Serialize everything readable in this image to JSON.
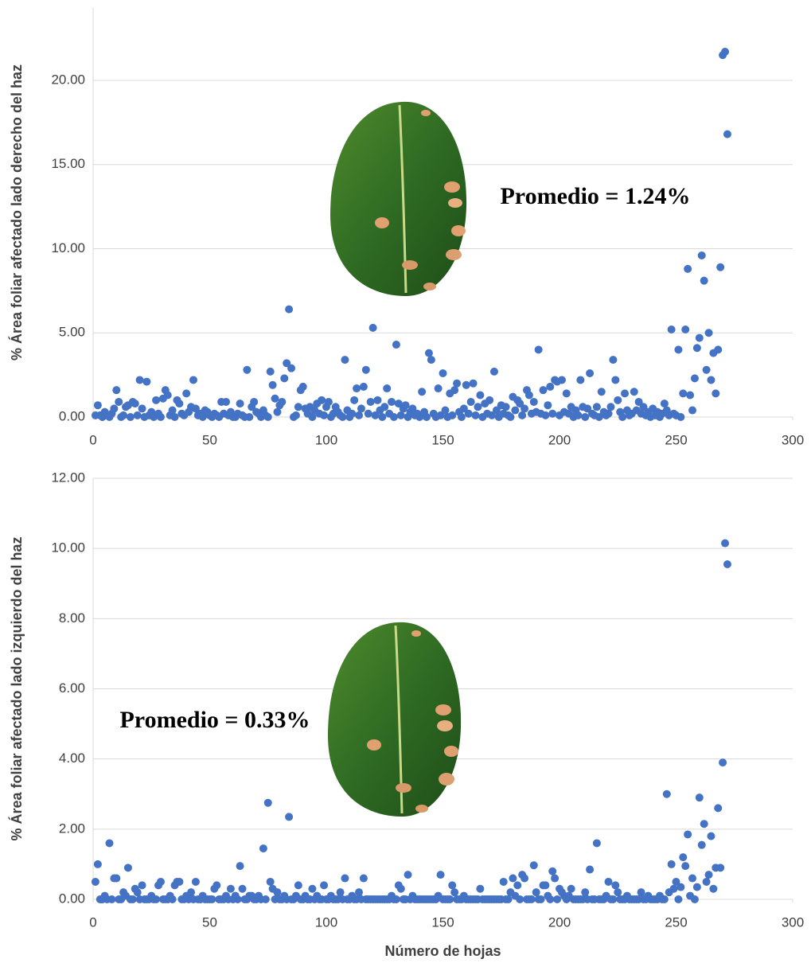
{
  "chart_data": [
    {
      "type": "scatter",
      "y_label": "% Área foliar afectado lado derecho del haz",
      "annotation": "Promedio = 1.24%",
      "color": "#4472c4",
      "grid": true,
      "xlim": [
        0,
        300
      ],
      "xticks": [
        0,
        50,
        100,
        150,
        200,
        250,
        300
      ],
      "ylim": [
        0,
        24.3
      ],
      "yticks": [
        {
          "value": 0,
          "label": "0.00"
        },
        {
          "value": 5,
          "label": "5.00"
        },
        {
          "value": 10,
          "label": "10.00"
        },
        {
          "value": 15,
          "label": "15.00"
        },
        {
          "value": 20,
          "label": "20.00"
        }
      ],
      "x": [
        1,
        2,
        3,
        4,
        5,
        6,
        7,
        8,
        9,
        10,
        11,
        12,
        13,
        14,
        15,
        16,
        17,
        18,
        19,
        20,
        21,
        22,
        23,
        24,
        25,
        26,
        27,
        28,
        29,
        30,
        31,
        32,
        33,
        34,
        35,
        36,
        37,
        38,
        39,
        40,
        41,
        42,
        43,
        44,
        45,
        46,
        47,
        48,
        49,
        50,
        51,
        52,
        53,
        54,
        55,
        56,
        57,
        58,
        59,
        60,
        61,
        62,
        63,
        64,
        65,
        66,
        67,
        68,
        69,
        70,
        71,
        72,
        73,
        74,
        75,
        76,
        77,
        78,
        79,
        80,
        81,
        82,
        83,
        84,
        85,
        86,
        87,
        88,
        89,
        90,
        91,
        92,
        93,
        94,
        95,
        96,
        97,
        98,
        99,
        100,
        101,
        102,
        103,
        104,
        105,
        106,
        107,
        108,
        109,
        110,
        111,
        112,
        113,
        114,
        115,
        116,
        117,
        118,
        119,
        120,
        121,
        122,
        123,
        124,
        125,
        126,
        127,
        128,
        129,
        130,
        131,
        132,
        133,
        134,
        135,
        136,
        137,
        138,
        139,
        140,
        141,
        142,
        143,
        144,
        145,
        146,
        147,
        148,
        149,
        150,
        151,
        152,
        153,
        154,
        155,
        156,
        157,
        158,
        159,
        160,
        161,
        162,
        163,
        164,
        165,
        166,
        167,
        168,
        169,
        170,
        171,
        172,
        173,
        174,
        175,
        176,
        177,
        178,
        179,
        180,
        181,
        182,
        183,
        184,
        185,
        186,
        187,
        188,
        189,
        190,
        191,
        192,
        193,
        194,
        195,
        196,
        197,
        198,
        199,
        200,
        201,
        202,
        203,
        204,
        205,
        206,
        207,
        208,
        209,
        210,
        211,
        212,
        213,
        214,
        215,
        216,
        217,
        218,
        219,
        220,
        221,
        222,
        223,
        224,
        225,
        226,
        227,
        228,
        229,
        230,
        231,
        232,
        233,
        234,
        235,
        236,
        237,
        238,
        239,
        240,
        241,
        242,
        243,
        244,
        245,
        246,
        247,
        248,
        249,
        250,
        251,
        252,
        253,
        254,
        255,
        256,
        257,
        258,
        259,
        260,
        261,
        262,
        263,
        264,
        265,
        266,
        267,
        268,
        269,
        270,
        271,
        272
      ],
      "values": [
        0.1,
        0.7,
        0.1,
        0,
        0.3,
        0.1,
        0,
        0.2,
        0.5,
        1.6,
        0.9,
        0,
        0.1,
        0.6,
        0.7,
        0,
        0.9,
        0.8,
        0.1,
        2.2,
        0.5,
        0,
        2.1,
        0.1,
        0.3,
        0,
        1.0,
        0.2,
        0,
        1.1,
        1.6,
        1.3,
        0.1,
        0.4,
        0,
        1.0,
        0.8,
        0.2,
        0.1,
        1.4,
        0.3,
        0.6,
        2.2,
        0.5,
        0.1,
        0.2,
        0,
        0.4,
        0.3,
        0.1,
        0,
        0.2,
        0.1,
        0,
        0.9,
        0.2,
        0.9,
        0.1,
        0.3,
        0,
        0,
        0.2,
        0.8,
        0.1,
        0,
        2.8,
        0,
        0.6,
        0.9,
        0.3,
        0.2,
        0,
        0.4,
        0.1,
        0,
        2.7,
        1.9,
        1.1,
        0.3,
        0.7,
        0.9,
        2.3,
        3.2,
        6.4,
        2.9,
        0,
        0.1,
        0.6,
        1.6,
        1.8,
        0.5,
        0.2,
        0.6,
        0,
        0.4,
        0.8,
        0.2,
        1.0,
        0.1,
        0.6,
        0.9,
        0,
        0.2,
        0.6,
        0.3,
        0.1,
        0,
        3.4,
        0.4,
        0,
        0.2,
        1.0,
        1.7,
        0.1,
        0.5,
        1.8,
        2.8,
        0.2,
        0.9,
        5.3,
        0.1,
        1.0,
        0.4,
        0,
        0.6,
        1.7,
        0.2,
        0.9,
        0,
        4.3,
        0.8,
        0.1,
        0.5,
        0.7,
        0,
        0.3,
        0.5,
        0.1,
        0.2,
        0,
        1.5,
        0.3,
        0,
        3.8,
        3.4,
        0.2,
        0,
        1.7,
        0.1,
        2.6,
        0.4,
        0,
        1.4,
        0.1,
        1.6,
        2.0,
        0.3,
        0,
        0.5,
        1.9,
        0.2,
        0.9,
        2.0,
        0.1,
        0.6,
        1.3,
        0,
        0.8,
        0.2,
        1.0,
        0.1,
        2.7,
        0.4,
        0,
        0.7,
        0.2,
        0.6,
        0.1,
        0,
        1.2,
        0.4,
        1.0,
        0.8,
        0.1,
        0.5,
        1.6,
        1.3,
        0.2,
        0.9,
        0.3,
        4.0,
        0.2,
        1.6,
        0.1,
        0.7,
        1.8,
        0.2,
        2.2,
        2.1,
        0.1,
        2.2,
        0.3,
        1.4,
        0.2,
        0.6,
        0,
        0.4,
        0.1,
        2.2,
        0.6,
        0,
        0.5,
        2.6,
        0.2,
        0.1,
        0.6,
        0,
        1.5,
        0.3,
        0.1,
        0.2,
        0.6,
        3.4,
        2.2,
        1.0,
        0.3,
        0,
        1.4,
        0.4,
        0.1,
        0.2,
        1.5,
        0.4,
        0.9,
        0.2,
        0.6,
        0.1,
        0.3,
        0,
        0.5,
        0.1,
        0.3,
        0,
        0.2,
        0.8,
        0.4,
        0.1,
        5.2,
        0.2,
        0.1,
        4.0,
        0,
        1.4,
        5.2,
        8.8,
        1.3,
        0.4,
        2.3,
        4.1,
        4.7,
        9.6,
        8.1,
        2.8,
        5.0,
        2.2,
        3.8,
        1.4,
        4.0,
        8.9,
        21.5,
        21.7,
        16.8
      ]
    },
    {
      "type": "scatter",
      "y_label": "% Área foliar afectado lado izquierdo del haz",
      "x_label": "Número de hojas",
      "annotation": "Promedio = 0.33%",
      "color": "#4472c4",
      "grid": true,
      "xlim": [
        0,
        300
      ],
      "xticks": [
        0,
        50,
        100,
        150,
        200,
        250,
        300
      ],
      "ylim": [
        0,
        12
      ],
      "yticks": [
        {
          "value": 0,
          "label": "0.00"
        },
        {
          "value": 2,
          "label": "2.00"
        },
        {
          "value": 4,
          "label": "4.00"
        },
        {
          "value": 6,
          "label": "6.00"
        },
        {
          "value": 8,
          "label": "8.00"
        },
        {
          "value": 10,
          "label": "10.00"
        },
        {
          "value": 12,
          "label": "12.00"
        }
      ],
      "x": [
        1,
        2,
        3,
        4,
        5,
        6,
        7,
        8,
        9,
        10,
        11,
        12,
        13,
        14,
        15,
        16,
        17,
        18,
        19,
        20,
        21,
        22,
        23,
        24,
        25,
        26,
        27,
        28,
        29,
        30,
        31,
        32,
        33,
        34,
        35,
        36,
        37,
        38,
        39,
        40,
        41,
        42,
        43,
        44,
        45,
        46,
        47,
        48,
        49,
        50,
        51,
        52,
        53,
        54,
        55,
        56,
        57,
        58,
        59,
        60,
        61,
        62,
        63,
        64,
        65,
        66,
        67,
        68,
        69,
        70,
        71,
        72,
        73,
        74,
        75,
        76,
        77,
        78,
        79,
        80,
        81,
        82,
        83,
        84,
        85,
        86,
        87,
        88,
        89,
        90,
        91,
        92,
        93,
        94,
        95,
        96,
        97,
        98,
        99,
        100,
        101,
        102,
        103,
        104,
        105,
        106,
        107,
        108,
        109,
        110,
        111,
        112,
        113,
        114,
        115,
        116,
        117,
        118,
        119,
        120,
        121,
        122,
        123,
        124,
        125,
        126,
        127,
        128,
        129,
        130,
        131,
        132,
        133,
        134,
        135,
        136,
        137,
        138,
        139,
        140,
        141,
        142,
        143,
        144,
        145,
        146,
        147,
        148,
        149,
        150,
        151,
        152,
        153,
        154,
        155,
        156,
        157,
        158,
        159,
        160,
        161,
        162,
        163,
        164,
        165,
        166,
        167,
        168,
        169,
        170,
        171,
        172,
        173,
        174,
        175,
        176,
        177,
        178,
        179,
        180,
        181,
        182,
        183,
        184,
        185,
        186,
        187,
        188,
        189,
        190,
        191,
        192,
        193,
        194,
        195,
        196,
        197,
        198,
        199,
        200,
        201,
        202,
        203,
        204,
        205,
        206,
        207,
        208,
        209,
        210,
        211,
        212,
        213,
        214,
        215,
        216,
        217,
        218,
        219,
        220,
        221,
        222,
        223,
        224,
        225,
        226,
        227,
        228,
        229,
        230,
        231,
        232,
        233,
        234,
        235,
        236,
        237,
        238,
        239,
        240,
        241,
        242,
        243,
        244,
        245,
        246,
        247,
        248,
        249,
        250,
        251,
        252,
        253,
        254,
        255,
        256,
        257,
        258,
        259,
        260,
        261,
        262,
        263,
        264,
        265,
        266,
        267,
        268,
        269,
        270,
        271,
        272
      ],
      "values": [
        0.5,
        1.0,
        0,
        0,
        0.1,
        0,
        1.6,
        0,
        0.6,
        0.6,
        0,
        0,
        0.2,
        0.1,
        0.9,
        0,
        0,
        0.3,
        0.2,
        0,
        0.4,
        0,
        0,
        0,
        0.1,
        0,
        0,
        0.4,
        0.5,
        0,
        0,
        0,
        0.1,
        0,
        0.4,
        0.5,
        0.5,
        0,
        0,
        0.1,
        0,
        0.2,
        0,
        0.5,
        0,
        0,
        0.1,
        0,
        0,
        0,
        0,
        0.3,
        0.4,
        0,
        0,
        0,
        0.1,
        0,
        0.3,
        0,
        0.1,
        0,
        0.95,
        0.3,
        0,
        0,
        0.1,
        0.1,
        0,
        0,
        0.1,
        0,
        1.45,
        0,
        2.75,
        0.5,
        0.3,
        0,
        0.2,
        0,
        0,
        0.1,
        0,
        2.35,
        0,
        0,
        0.1,
        0.4,
        0,
        0,
        0.1,
        0,
        0,
        0.3,
        0,
        0.1,
        0,
        0,
        0.4,
        0,
        0,
        0.1,
        0,
        0,
        0,
        0.2,
        0,
        0.6,
        0,
        0,
        0.1,
        0,
        0,
        0.2,
        0,
        0.6,
        0,
        0,
        0,
        0,
        0,
        0,
        0,
        0,
        0,
        0,
        0,
        0.1,
        0,
        0,
        0.4,
        0.3,
        0,
        0,
        0.7,
        0,
        0.1,
        0,
        0,
        0,
        0,
        0,
        0,
        0,
        0,
        0,
        0,
        0.1,
        0.7,
        0,
        0,
        0,
        0,
        0.4,
        0.2,
        0,
        0,
        0,
        0.1,
        0,
        0,
        0,
        0,
        0,
        0,
        0.3,
        0,
        0,
        0,
        0,
        0,
        0,
        0,
        0,
        0,
        0.5,
        0,
        0,
        0.2,
        0.6,
        0.1,
        0.4,
        0,
        0.7,
        0.6,
        0,
        0,
        0,
        0.97,
        0.2,
        0,
        0,
        0.4,
        0.4,
        0.1,
        0,
        0.8,
        0.6,
        0,
        0.3,
        0.2,
        0.1,
        0,
        0.1,
        0.3,
        0,
        0,
        0,
        0,
        0,
        0.2,
        0,
        0.85,
        0,
        0,
        1.6,
        0,
        0,
        0,
        0.1,
        0.5,
        0,
        0,
        0.4,
        0.2,
        0,
        0,
        0,
        0.1,
        0,
        0,
        0,
        0,
        0,
        0.2,
        0,
        0,
        0.1,
        0,
        0,
        0,
        0,
        0.1,
        0,
        0,
        3.0,
        0.2,
        1.0,
        0.3,
        0.5,
        0,
        0.35,
        1.2,
        0.95,
        1.85,
        0.1,
        0.6,
        0,
        0.35,
        2.9,
        1.55,
        2.15,
        0.5,
        0.7,
        1.8,
        0.3,
        0.9,
        2.6,
        0.9,
        3.9,
        10.15,
        9.55
      ]
    }
  ]
}
